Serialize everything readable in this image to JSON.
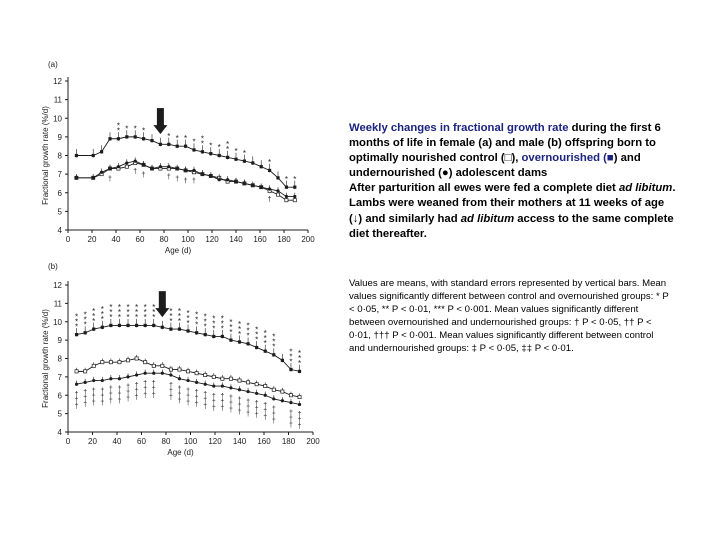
{
  "caption": {
    "title_highlight": "Weekly changes in fractional growth rate",
    "title_rest": " during the first 6 months of life in female (a) and male (b) offspring born to optimally nourished control (",
    "open_square": "□",
    "close1": "),",
    "over_label": "overnourished (",
    "filled_square": "■",
    "and_under": ") and undernourished (",
    "filled_circle": "●",
    "close2": ") adolescent dams",
    "line2_a": "After parturition all ewes were fed a complete diet ",
    "line2_italic": "ad libitum",
    "line2_b": ".",
    "line3_a": "Lambs were weaned from their mothers at 11 weeks of age (",
    "arrow": "↓",
    "line3_b": ") and similarly had ",
    "line3_italic": "ad libitum",
    "line3_c": " access to the same complete diet thereafter.",
    "notes": "Values are means, with standard errors represented by vertical bars. Mean values significantly different between control and overnourished groups: * P < 0·05, ** P < 0·01, *** P < 0·001. Mean values significantly different between overnourished and undernourished groups: † P < 0·05, †† P < 0·01, ††† P < 0·001. Mean values significantly different between control and undernourished groups: ‡ P < 0·05, ‡‡ P < 0·01."
  },
  "colors": {
    "ink": "#1c1c1c",
    "caption_highlight": "#1a237e"
  },
  "chart_data": [
    {
      "type": "line",
      "panel_label": "(a)",
      "xlabel": "Age (d)",
      "ylabel": "Fractional growth rate (%/d)",
      "xlim": [
        0,
        200
      ],
      "ylim": [
        4,
        12
      ],
      "xticks": [
        0,
        20,
        40,
        60,
        80,
        100,
        120,
        140,
        160,
        180,
        200
      ],
      "yticks": [
        4,
        5,
        6,
        7,
        8,
        9,
        10,
        11,
        12
      ],
      "x": [
        7,
        21,
        28,
        35,
        42,
        49,
        56,
        63,
        70,
        77,
        84,
        91,
        98,
        105,
        112,
        119,
        126,
        133,
        140,
        147,
        154,
        161,
        168,
        175,
        182,
        189
      ],
      "series": [
        {
          "name": "overnourished",
          "marker": "filled-square",
          "values": [
            8.0,
            8.0,
            8.2,
            8.9,
            8.9,
            9.0,
            9.0,
            8.9,
            8.8,
            8.6,
            8.6,
            8.5,
            8.5,
            8.3,
            8.2,
            8.1,
            8.0,
            7.9,
            7.8,
            7.7,
            7.6,
            7.4,
            7.2,
            6.8,
            6.3,
            6.3
          ]
        },
        {
          "name": "control",
          "marker": "open-square",
          "values": [
            6.8,
            6.8,
            7.0,
            7.3,
            7.3,
            7.4,
            7.6,
            7.5,
            7.3,
            7.3,
            7.3,
            7.3,
            7.2,
            7.1,
            7.0,
            6.9,
            6.8,
            6.6,
            6.6,
            6.5,
            6.4,
            6.3,
            6.1,
            5.9,
            5.6,
            5.6
          ]
        },
        {
          "name": "undernourished",
          "marker": "filled-circle",
          "values": [
            6.8,
            6.8,
            7.1,
            7.3,
            7.4,
            7.6,
            7.7,
            7.5,
            7.3,
            7.4,
            7.4,
            7.3,
            7.2,
            7.2,
            7.0,
            6.9,
            6.7,
            6.7,
            6.6,
            6.5,
            6.4,
            6.3,
            6.2,
            6.1,
            5.8,
            5.8
          ]
        }
      ],
      "weaning_day": 77,
      "significance_above": [
        {
          "x": 42,
          "text": "**"
        },
        {
          "x": 49,
          "text": "*"
        },
        {
          "x": 56,
          "text": "*"
        },
        {
          "x": 63,
          "text": "*"
        },
        {
          "x": 84,
          "text": "*"
        },
        {
          "x": 91,
          "text": "*"
        },
        {
          "x": 98,
          "text": "*"
        },
        {
          "x": 105,
          "text": "*"
        },
        {
          "x": 112,
          "text": "**"
        },
        {
          "x": 119,
          "text": "*"
        },
        {
          "x": 126,
          "text": "*"
        },
        {
          "x": 133,
          "text": "**"
        },
        {
          "x": 140,
          "text": "*"
        },
        {
          "x": 147,
          "text": "*"
        },
        {
          "x": 168,
          "text": "*"
        },
        {
          "x": 182,
          "text": "*"
        },
        {
          "x": 189,
          "text": "*"
        }
      ],
      "significance_below": [
        {
          "x": 35,
          "text": "†"
        },
        {
          "x": 56,
          "text": "†"
        },
        {
          "x": 63,
          "text": "†"
        },
        {
          "x": 84,
          "text": "†"
        },
        {
          "x": 91,
          "text": "†"
        },
        {
          "x": 98,
          "text": "†"
        },
        {
          "x": 105,
          "text": "†"
        },
        {
          "x": 168,
          "text": "†"
        }
      ]
    },
    {
      "type": "line",
      "panel_label": "(b)",
      "xlabel": "Age (d)",
      "ylabel": "Fractional growth rate (%/d)",
      "xlim": [
        0,
        200
      ],
      "ylim": [
        4,
        12
      ],
      "xticks": [
        0,
        20,
        40,
        60,
        80,
        100,
        120,
        140,
        160,
        180,
        200
      ],
      "yticks": [
        4,
        5,
        6,
        7,
        8,
        9,
        10,
        11,
        12
      ],
      "x": [
        7,
        14,
        21,
        28,
        35,
        42,
        49,
        56,
        63,
        70,
        77,
        84,
        91,
        98,
        105,
        112,
        119,
        126,
        133,
        140,
        147,
        154,
        161,
        168,
        175,
        182,
        189
      ],
      "series": [
        {
          "name": "overnourished",
          "marker": "filled-square",
          "values": [
            9.3,
            9.4,
            9.6,
            9.7,
            9.8,
            9.8,
            9.8,
            9.8,
            9.8,
            9.8,
            9.7,
            9.6,
            9.6,
            9.5,
            9.4,
            9.3,
            9.2,
            9.2,
            9.0,
            8.9,
            8.8,
            8.6,
            8.4,
            8.2,
            7.9,
            7.4,
            7.3
          ]
        },
        {
          "name": "control",
          "marker": "open-square",
          "values": [
            7.3,
            7.3,
            7.6,
            7.8,
            7.8,
            7.8,
            7.9,
            8.0,
            7.8,
            7.6,
            7.6,
            7.4,
            7.4,
            7.3,
            7.2,
            7.1,
            7.0,
            6.9,
            6.9,
            6.8,
            6.7,
            6.6,
            6.5,
            6.3,
            6.2,
            6.0,
            5.9
          ]
        },
        {
          "name": "undernourished",
          "marker": "filled-circle",
          "values": [
            6.6,
            6.7,
            6.8,
            6.8,
            6.9,
            6.9,
            7.0,
            7.1,
            7.2,
            7.2,
            7.2,
            7.1,
            6.9,
            6.8,
            6.7,
            6.6,
            6.5,
            6.5,
            6.4,
            6.3,
            6.2,
            6.1,
            6.0,
            5.8,
            5.7,
            5.6,
            5.5
          ]
        }
      ],
      "weaning_day": 77,
      "significance_above": [
        {
          "x": 7,
          "text": "***"
        },
        {
          "x": 14,
          "text": "***"
        },
        {
          "x": 21,
          "text": "***"
        },
        {
          "x": 28,
          "text": "***"
        },
        {
          "x": 35,
          "text": "***"
        },
        {
          "x": 42,
          "text": "***"
        },
        {
          "x": 49,
          "text": "***"
        },
        {
          "x": 56,
          "text": "***"
        },
        {
          "x": 63,
          "text": "***"
        },
        {
          "x": 70,
          "text": "***"
        },
        {
          "x": 84,
          "text": "***"
        },
        {
          "x": 91,
          "text": "***"
        },
        {
          "x": 98,
          "text": "***"
        },
        {
          "x": 105,
          "text": "***"
        },
        {
          "x": 112,
          "text": "***"
        },
        {
          "x": 119,
          "text": "***"
        },
        {
          "x": 126,
          "text": "***"
        },
        {
          "x": 133,
          "text": "***"
        },
        {
          "x": 140,
          "text": "***"
        },
        {
          "x": 147,
          "text": "***"
        },
        {
          "x": 154,
          "text": "***"
        },
        {
          "x": 161,
          "text": "***"
        },
        {
          "x": 168,
          "text": "***"
        },
        {
          "x": 182,
          "text": "***"
        },
        {
          "x": 189,
          "text": "***"
        }
      ],
      "significance_below": [
        {
          "x": 7,
          "text": "†††"
        },
        {
          "x": 14,
          "text": "†††"
        },
        {
          "x": 21,
          "text": "†††"
        },
        {
          "x": 28,
          "text": "†††"
        },
        {
          "x": 35,
          "text": "†††"
        },
        {
          "x": 42,
          "text": "†††"
        },
        {
          "x": 49,
          "text": "†††"
        },
        {
          "x": 56,
          "text": "†††"
        },
        {
          "x": 63,
          "text": "†††"
        },
        {
          "x": 70,
          "text": "†††"
        },
        {
          "x": 84,
          "text": "†††"
        },
        {
          "x": 91,
          "text": "†††"
        },
        {
          "x": 98,
          "text": "†††"
        },
        {
          "x": 105,
          "text": "†††"
        },
        {
          "x": 112,
          "text": "†††"
        },
        {
          "x": 119,
          "text": "†††"
        },
        {
          "x": 126,
          "text": "†††"
        },
        {
          "x": 133,
          "text": "†††"
        },
        {
          "x": 140,
          "text": "†††"
        },
        {
          "x": 147,
          "text": "†††"
        },
        {
          "x": 154,
          "text": "†††"
        },
        {
          "x": 161,
          "text": "†††"
        },
        {
          "x": 168,
          "text": "†††"
        },
        {
          "x": 182,
          "text": "†††"
        },
        {
          "x": 189,
          "text": "†††"
        }
      ]
    }
  ]
}
